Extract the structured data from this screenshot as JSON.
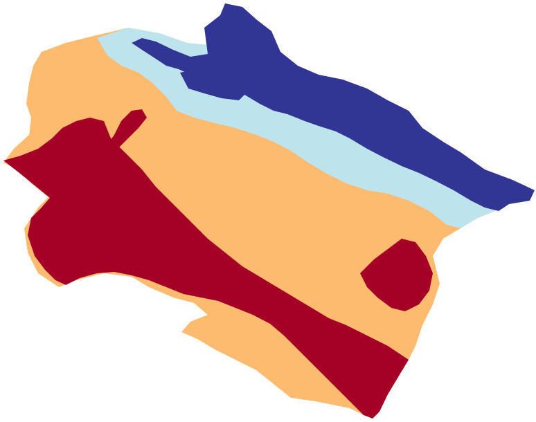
{
  "map": {
    "zones": [
      {
        "id": "outline",
        "color": "#fdbb6f"
      },
      {
        "id": "south-belt",
        "color": "#a50026"
      },
      {
        "id": "light-band",
        "color": "#bde3ec"
      },
      {
        "id": "north-belt",
        "color": "#313695"
      }
    ],
    "labels_visible": false
  }
}
